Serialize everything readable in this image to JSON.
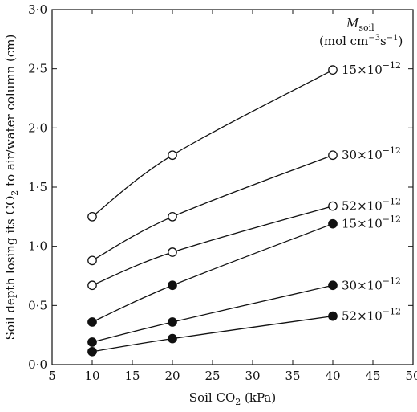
{
  "chart_data": {
    "type": "line",
    "xlabel": "Soil CO",
    "xlabel_sub": "2",
    "xlabel_unit": " (kPa)",
    "ylabel_pre": "Soil depth losing its CO",
    "ylabel_sub": "2",
    "ylabel_post": " to air/water column (cm)",
    "xlim": [
      5,
      50
    ],
    "ylim": [
      0,
      3
    ],
    "xticks": [
      5,
      10,
      15,
      20,
      25,
      30,
      35,
      40,
      45,
      50
    ],
    "yticks": [
      "0·0",
      "0·5",
      "1·0",
      "1·5",
      "2·0",
      "2·5",
      "3·0"
    ],
    "legend": {
      "title_main": "M",
      "title_sub": "soil",
      "units_pre": "(mol cm",
      "units_sup1": "−3",
      "units_mid": "s",
      "units_sup2": "−1",
      "units_post": ")"
    },
    "series": [
      {
        "name": "15×10⁻¹²",
        "label_base": "15×10",
        "label_exp": "−12",
        "marker": "open",
        "x": [
          10,
          20,
          40
        ],
        "y": [
          1.25,
          1.77,
          2.49
        ]
      },
      {
        "name": "30×10⁻¹²",
        "label_base": "30×10",
        "label_exp": "−12",
        "marker": "open",
        "x": [
          10,
          20,
          40
        ],
        "y": [
          0.88,
          1.25,
          1.77
        ]
      },
      {
        "name": "52×10⁻¹²",
        "label_base": "52×10",
        "label_exp": "−12",
        "marker": "open",
        "x": [
          10,
          20,
          40
        ],
        "y": [
          0.67,
          0.95,
          1.34
        ]
      },
      {
        "name": "15×10⁻¹²",
        "label_base": "15×10",
        "label_exp": "−12",
        "marker": "filled",
        "x": [
          10,
          20,
          40
        ],
        "y": [
          0.36,
          0.67,
          1.19
        ]
      },
      {
        "name": "30×10⁻¹²",
        "label_base": "30×10",
        "label_exp": "−12",
        "marker": "filled",
        "x": [
          10,
          20,
          40
        ],
        "y": [
          0.19,
          0.36,
          0.67
        ]
      },
      {
        "name": "52×10⁻¹²",
        "label_base": "52×10",
        "label_exp": "−12",
        "marker": "filled",
        "x": [
          10,
          20,
          40
        ],
        "y": [
          0.11,
          0.22,
          0.41
        ]
      }
    ]
  }
}
